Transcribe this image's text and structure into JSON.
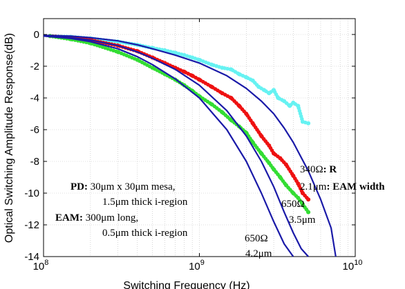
{
  "chart_data": {
    "type": "line",
    "title": "",
    "xlabel": "Switching Frequency (Hz)",
    "ylabel": "Optical Switching Amplitude Response(dB)",
    "xscale": "log",
    "xlim": [
      100000000,
      10000000000
    ],
    "ylim": [
      -14,
      1
    ],
    "grid": true,
    "x_ticks": [
      {
        "value": 100000000,
        "mantissa": "10",
        "exponent": "8"
      },
      {
        "value": 1000000000,
        "mantissa": "10",
        "exponent": "9"
      },
      {
        "value": 10000000000,
        "mantissa": "10",
        "exponent": "10"
      }
    ],
    "y_ticks": [
      0,
      -2,
      -4,
      -6,
      -8,
      -10,
      -12,
      -14
    ],
    "colors": {
      "cyan": "#66f2f2",
      "red": "#ee1111",
      "green": "#33dd33",
      "model": "#1a1aa8",
      "grid": "#bbbbbb"
    },
    "series": [
      {
        "color_key": "cyan",
        "style": "dotted",
        "x": [
          110000000,
          150000000,
          200000000,
          300000000,
          400000000,
          500000000,
          600000000,
          700000000,
          800000000,
          900000000,
          1000000000,
          1200000000,
          1400000000,
          1600000000,
          1800000000,
          2000000000,
          2200000000,
          2400000000,
          2600000000,
          2800000000,
          3000000000,
          3200000000,
          3500000000,
          3800000000,
          4000000000,
          4300000000,
          4600000000,
          5000000000
        ],
        "values": [
          -0.1,
          -0.15,
          -0.25,
          -0.45,
          -0.65,
          -0.85,
          -1.0,
          -1.15,
          -1.3,
          -1.45,
          -1.6,
          -1.9,
          -2.1,
          -2.2,
          -2.5,
          -2.7,
          -2.9,
          -3.3,
          -3.5,
          -3.7,
          -3.5,
          -4.0,
          -4.2,
          -4.5,
          -4.3,
          -4.5,
          -5.5,
          -5.6
        ]
      },
      {
        "color_key": "red",
        "style": "dotted",
        "x": [
          110000000,
          150000000,
          200000000,
          300000000,
          400000000,
          500000000,
          600000000,
          700000000,
          800000000,
          900000000,
          1000000000,
          1200000000,
          1400000000,
          1600000000,
          1800000000,
          2000000000,
          2200000000,
          2500000000,
          2800000000,
          3000000000,
          3300000000,
          3600000000,
          4000000000,
          4300000000,
          4600000000,
          5000000000
        ],
        "values": [
          -0.1,
          -0.2,
          -0.35,
          -0.7,
          -1.05,
          -1.45,
          -1.8,
          -2.1,
          -2.35,
          -2.6,
          -2.85,
          -3.3,
          -3.7,
          -4.0,
          -4.5,
          -5.0,
          -5.6,
          -6.4,
          -7.0,
          -7.5,
          -7.8,
          -8.2,
          -8.9,
          -9.4,
          -10.0,
          -10.4
        ]
      },
      {
        "color_key": "green",
        "style": "dotted",
        "x": [
          110000000,
          150000000,
          200000000,
          300000000,
          400000000,
          500000000,
          600000000,
          700000000,
          800000000,
          900000000,
          1000000000,
          1200000000,
          1400000000,
          1600000000,
          1800000000,
          2000000000,
          2200000000,
          2500000000,
          2800000000,
          3000000000,
          3300000000,
          3600000000,
          4000000000,
          4300000000,
          4600000000,
          5000000000
        ],
        "values": [
          -0.1,
          -0.3,
          -0.55,
          -1.1,
          -1.6,
          -2.1,
          -2.5,
          -2.85,
          -3.2,
          -3.55,
          -3.9,
          -4.4,
          -4.9,
          -5.4,
          -5.8,
          -6.2,
          -6.8,
          -7.5,
          -8.1,
          -8.5,
          -9.0,
          -9.5,
          -10.0,
          -10.3,
          -10.7,
          -11.2
        ]
      },
      {
        "color_key": "model",
        "style": "solid",
        "x": [
          100000000,
          150000000,
          200000000,
          300000000,
          400000000,
          500000000,
          700000000,
          1000000000,
          1500000000,
          2000000000,
          2500000000,
          3000000000,
          3500000000,
          4000000000,
          5000000000,
          6000000000,
          7000000000,
          7500000000
        ],
        "values": [
          -0.05,
          -0.1,
          -0.2,
          -0.4,
          -0.65,
          -0.9,
          -1.3,
          -1.8,
          -2.6,
          -3.4,
          -4.2,
          -5.0,
          -5.9,
          -6.8,
          -8.6,
          -10.4,
          -12.2,
          -14.0
        ]
      },
      {
        "color_key": "model",
        "style": "solid",
        "x": [
          100000000,
          150000000,
          200000000,
          300000000,
          400000000,
          500000000,
          700000000,
          1000000000,
          1500000000,
          2000000000,
          2500000000,
          3000000000,
          3500000000,
          4000000000,
          4500000000,
          5000000000
        ],
        "values": [
          -0.1,
          -0.2,
          -0.35,
          -0.7,
          -1.1,
          -1.5,
          -2.2,
          -3.2,
          -4.8,
          -6.4,
          -8.0,
          -9.6,
          -11.2,
          -12.5,
          -13.5,
          -14.0
        ]
      },
      {
        "color_key": "model",
        "style": "solid",
        "x": [
          100000000,
          150000000,
          200000000,
          300000000,
          400000000,
          500000000,
          700000000,
          1000000000,
          1500000000,
          2000000000,
          2500000000,
          3000000000,
          3500000000,
          4000000000
        ],
        "values": [
          -0.1,
          -0.25,
          -0.45,
          -0.9,
          -1.4,
          -1.9,
          -2.8,
          -4.0,
          -6.0,
          -8.0,
          -10.0,
          -11.8,
          -13.2,
          -14.0
        ]
      }
    ],
    "annotations": {
      "pd": {
        "bold": "PD:",
        "line1": " 30μm x 30μm mesa,",
        "line2": "1.5μm thick i-region"
      },
      "eam": {
        "bold": "EAM:",
        "line1": " 300μm long,",
        "line2": "0.5μm thick i-region"
      },
      "curve1": {
        "value1": "340Ω",
        "label1": ": R",
        "value2": "2.1μm",
        "label2": ": EAM width"
      },
      "curve2": {
        "line1": "650Ω",
        "line2": "3.5μm"
      },
      "curve3": {
        "line1": "650Ω",
        "line2": "4.2μm"
      }
    }
  }
}
